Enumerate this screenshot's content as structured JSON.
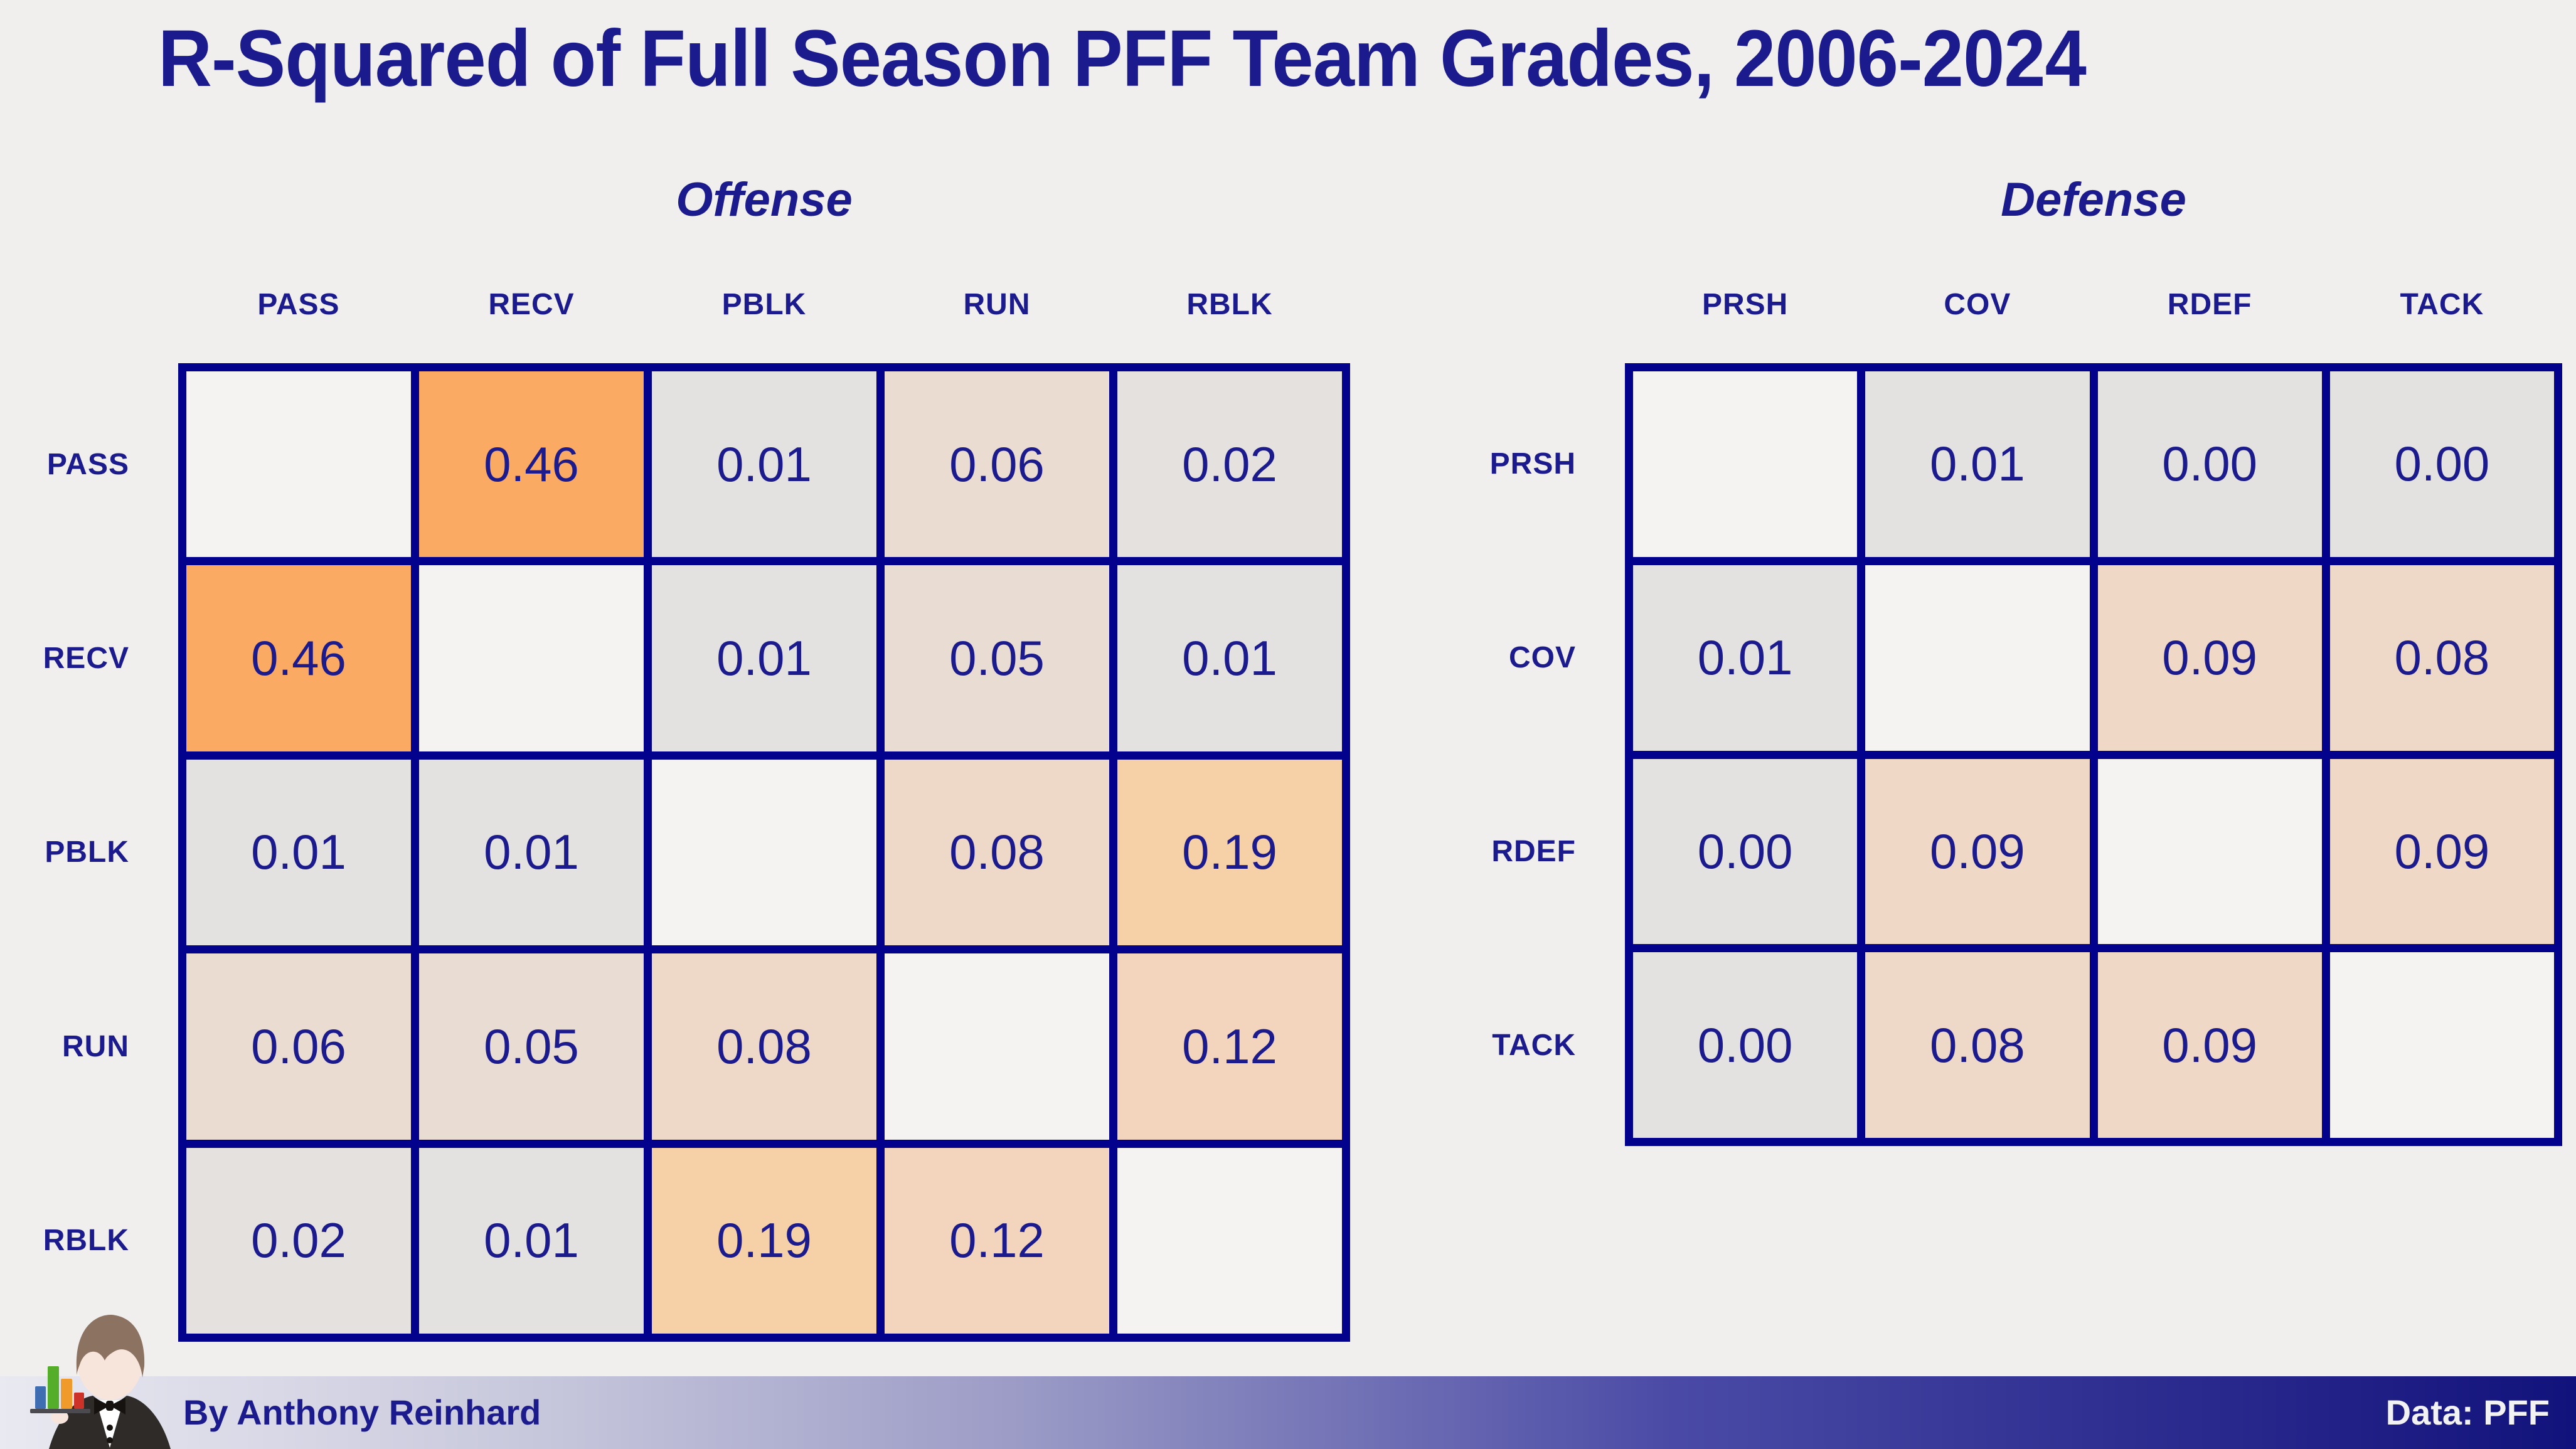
{
  "title": "R-Squared of Full Season PFF Team Grades, 2006-2024",
  "footer": {
    "author": "By Anthony Reinhard",
    "source": "Data: PFF"
  },
  "icons": {
    "avatar": "tuxedo-analyst-avatar",
    "avatar_chart": "bar-chart-icon"
  },
  "colors": {
    "background": "#f0efee",
    "grid_line_navy": "#02028c",
    "text_navy": "#1b1b8e",
    "footer_text_light": "#f2f2f2",
    "footer_gradient_left": "#e9e9f1",
    "footer_gradient_right": "#12127c",
    "value_colors": {
      "blank": "#f4f3f2",
      "0.00": "#e3e2e0",
      "0.01": "#e4e2e0",
      "0.02": "#e4e1de",
      "0.05": "#e9ddd3",
      "0.06": "#eadcd1",
      "0.08": "#eed9c8",
      "0.09": "#efd8c5",
      "0.12": "#f2d5bc",
      "0.19": "#f6d1a8",
      "0.46": "#fbaa63"
    }
  },
  "chart_data": [
    {
      "type": "heatmap",
      "title": "Offense",
      "categories": [
        "PASS",
        "RECV",
        "PBLK",
        "RUN",
        "RBLK"
      ],
      "matrix": [
        [
          null,
          0.46,
          0.01,
          0.06,
          0.02
        ],
        [
          0.46,
          null,
          0.01,
          0.05,
          0.01
        ],
        [
          0.01,
          0.01,
          null,
          0.08,
          0.19
        ],
        [
          0.06,
          0.05,
          0.08,
          null,
          0.12
        ],
        [
          0.02,
          0.01,
          0.19,
          0.12,
          null
        ]
      ],
      "value_range": [
        0,
        0.46
      ],
      "legend": "none",
      "notes": "diagonal cells blank; matrix symmetric"
    },
    {
      "type": "heatmap",
      "title": "Defense",
      "categories": [
        "PRSH",
        "COV",
        "RDEF",
        "TACK"
      ],
      "matrix": [
        [
          null,
          0.01,
          0.0,
          0.0
        ],
        [
          0.01,
          null,
          0.09,
          0.08
        ],
        [
          0.0,
          0.09,
          null,
          0.09
        ],
        [
          0.0,
          0.08,
          0.09,
          null
        ]
      ],
      "value_range": [
        0,
        0.46
      ],
      "legend": "none",
      "notes": "diagonal cells blank; matrix symmetric"
    }
  ]
}
